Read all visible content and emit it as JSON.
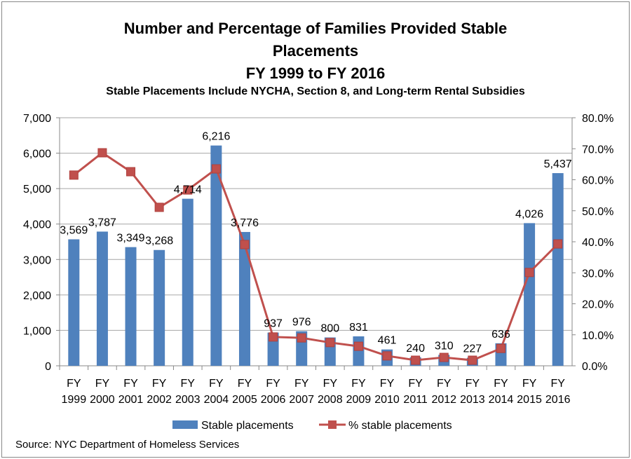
{
  "chart_data": {
    "type": "bar",
    "title_lines": [
      "Number and Percentage of Families Provided Stable",
      "Placements",
      "FY 1999 to FY 2016"
    ],
    "subtitle": "Stable Placements Include NYCHA, Section 8, and Long-term Rental Subsidies",
    "categories": [
      "FY 1999",
      "FY 2000",
      "FY 2001",
      "FY 2002",
      "FY 2003",
      "FY 2004",
      "FY 2005",
      "FY 2006",
      "FY 2007",
      "FY 2008",
      "FY 2009",
      "FY 2010",
      "FY 2011",
      "FY 2012",
      "FY 2013",
      "FY 2014",
      "FY 2015",
      "FY 2016"
    ],
    "series": [
      {
        "name": "Stable placements",
        "type": "bar",
        "axis": "left",
        "color": "#4f81bd",
        "values": [
          3569,
          3787,
          3349,
          3268,
          4714,
          6216,
          3776,
          937,
          976,
          800,
          831,
          461,
          240,
          310,
          227,
          636,
          4026,
          5437
        ],
        "labels": [
          "3,569",
          "3,787",
          "3,349",
          "3,268",
          "4,714",
          "6,216",
          "3,776",
          "937",
          "976",
          "800",
          "831",
          "461",
          "240",
          "310",
          "227",
          "636",
          "4,026",
          "5,437"
        ]
      },
      {
        "name": "% stable placements",
        "type": "line",
        "axis": "right",
        "color": "#c0504d",
        "values": [
          61.5,
          68.7,
          62.6,
          51.1,
          56.7,
          63.5,
          39.1,
          9.3,
          9.0,
          7.5,
          6.3,
          3.2,
          1.8,
          2.7,
          1.8,
          5.6,
          30.1,
          39.3
        ]
      }
    ],
    "ylim": [
      0,
      7000
    ],
    "y2lim": [
      0,
      80
    ],
    "yticks": [
      "0",
      "1,000",
      "2,000",
      "3,000",
      "4,000",
      "5,000",
      "6,000",
      "7,000"
    ],
    "y2ticks": [
      "0.0%",
      "10.0%",
      "20.0%",
      "30.0%",
      "40.0%",
      "50.0%",
      "60.0%",
      "70.0%",
      "80.0%"
    ],
    "grid": true,
    "legend": "bottom",
    "source": "Source: NYC Department of Homeless Services"
  }
}
